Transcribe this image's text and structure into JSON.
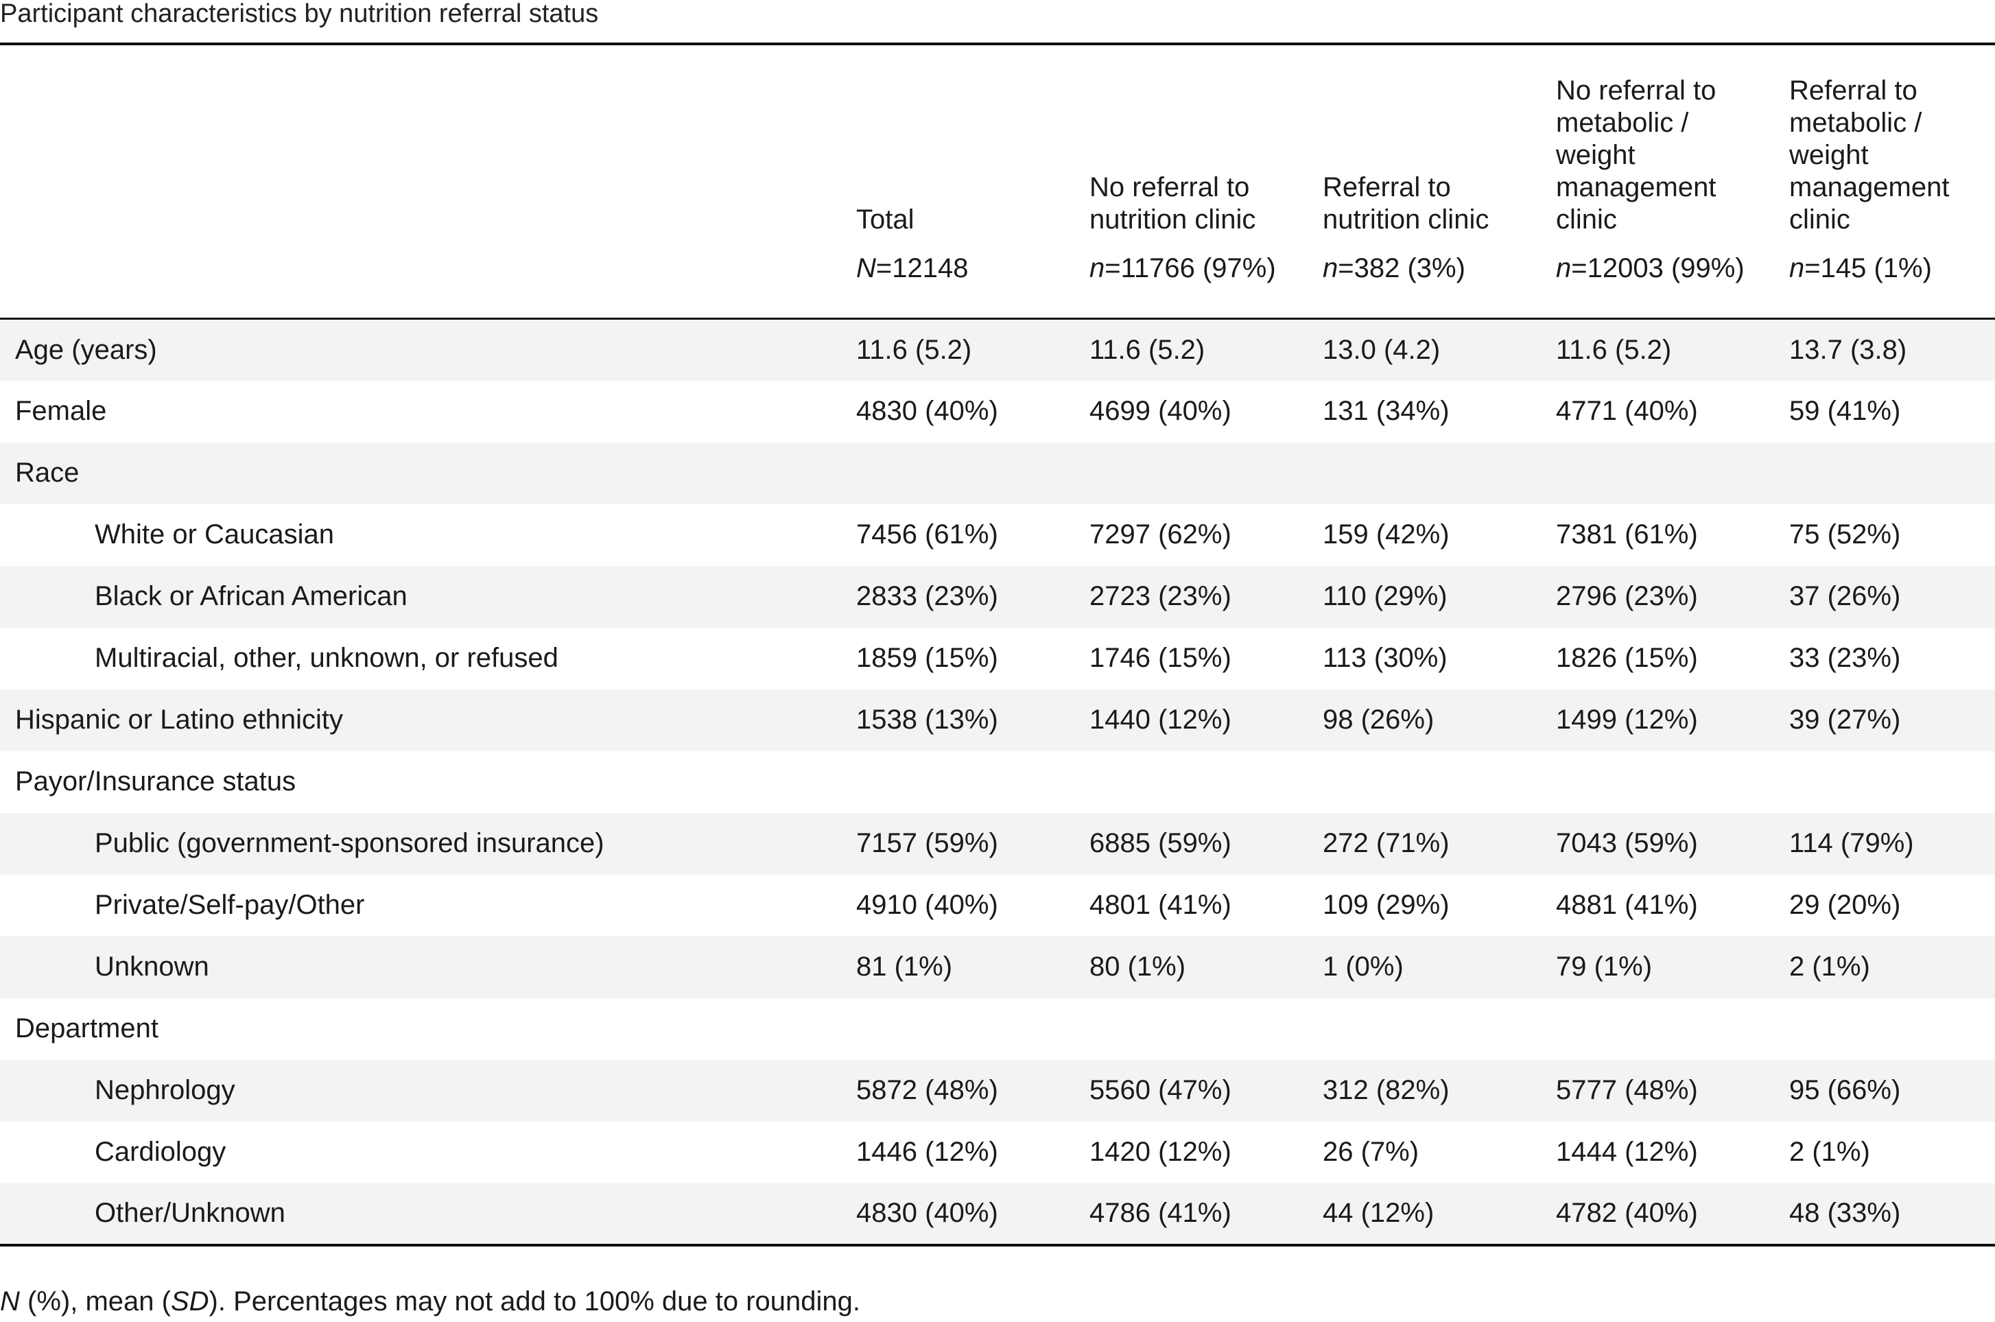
{
  "caption": "Participant characteristics by nutrition referral status",
  "columns": [
    {
      "label": "",
      "n_prefix": "",
      "n_value": ""
    },
    {
      "label": "Total",
      "n_prefix": "N",
      "n_value": "=12148"
    },
    {
      "label": "No referral to nutrition clinic",
      "n_prefix": "n",
      "n_value": "=11766 (97%)"
    },
    {
      "label": "Referral to nutrition clinic",
      "n_prefix": "n",
      "n_value": "=382 (3%)"
    },
    {
      "label": "No referral to metabolic / weight management clinic",
      "n_prefix": "n",
      "n_value": "=12003 (99%)"
    },
    {
      "label": "Referral to metabolic / weight management clinic",
      "n_prefix": "n",
      "n_value": "=145 (1%)"
    }
  ],
  "rows": [
    {
      "label": "Age (years)",
      "sub": false,
      "values": [
        "11.6 (5.2)",
        "11.6 (5.2)",
        "13.0 (4.2)",
        "11.6 (5.2)",
        "13.7 (3.8)"
      ]
    },
    {
      "label": "Female",
      "sub": false,
      "values": [
        "4830 (40%)",
        "4699 (40%)",
        "131 (34%)",
        "4771 (40%)",
        "59 (41%)"
      ]
    },
    {
      "label": "Race",
      "sub": false,
      "values": [
        "",
        "",
        "",
        "",
        ""
      ]
    },
    {
      "label": "White or Caucasian",
      "sub": true,
      "values": [
        "7456 (61%)",
        "7297 (62%)",
        "159 (42%)",
        "7381 (61%)",
        "75 (52%)"
      ]
    },
    {
      "label": "Black or African American",
      "sub": true,
      "values": [
        "2833 (23%)",
        "2723 (23%)",
        "110 (29%)",
        "2796 (23%)",
        "37 (26%)"
      ]
    },
    {
      "label": "Multiracial, other, unknown, or refused",
      "sub": true,
      "values": [
        "1859 (15%)",
        "1746 (15%)",
        "113 (30%)",
        "1826 (15%)",
        "33 (23%)"
      ]
    },
    {
      "label": "Hispanic or Latino ethnicity",
      "sub": false,
      "values": [
        "1538 (13%)",
        "1440 (12%)",
        "98 (26%)",
        "1499 (12%)",
        "39 (27%)"
      ]
    },
    {
      "label": "Payor/Insurance status",
      "sub": false,
      "values": [
        "",
        "",
        "",
        "",
        ""
      ]
    },
    {
      "label": "Public (government-sponsored insurance)",
      "sub": true,
      "values": [
        "7157 (59%)",
        "6885 (59%)",
        "272 (71%)",
        "7043 (59%)",
        "114 (79%)"
      ]
    },
    {
      "label": "Private/Self-pay/Other",
      "sub": true,
      "values": [
        "4910 (40%)",
        "4801 (41%)",
        "109 (29%)",
        "4881 (41%)",
        "29 (20%)"
      ]
    },
    {
      "label": "Unknown",
      "sub": true,
      "values": [
        "81 (1%)",
        "80 (1%)",
        "1 (0%)",
        "79 (1%)",
        "2 (1%)"
      ]
    },
    {
      "label": "Department",
      "sub": false,
      "values": [
        "",
        "",
        "",
        "",
        ""
      ]
    },
    {
      "label": "Nephrology",
      "sub": true,
      "values": [
        "5872 (48%)",
        "5560 (47%)",
        "312 (82%)",
        "5777 (48%)",
        "95 (66%)"
      ]
    },
    {
      "label": "Cardiology",
      "sub": true,
      "values": [
        "1446 (12%)",
        "1420 (12%)",
        "26 (7%)",
        "1444 (12%)",
        "2 (1%)"
      ]
    },
    {
      "label": "Other/Unknown",
      "sub": true,
      "values": [
        "4830 (40%)",
        "4786 (41%)",
        "44 (12%)",
        "4782 (40%)",
        "48 (33%)"
      ]
    }
  ],
  "footnote": {
    "part1": "N",
    "part2": " (%), mean (",
    "part3": "SD",
    "part4": "). Percentages may not add to 100% due to rounding."
  }
}
